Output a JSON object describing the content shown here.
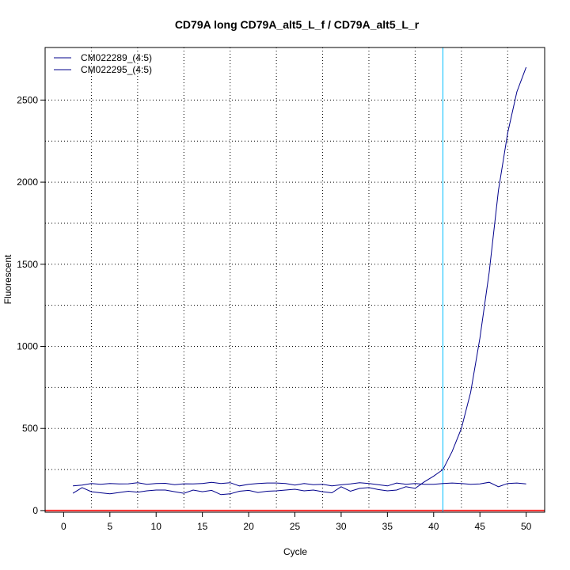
{
  "chart_data": {
    "type": "line",
    "title": "CD79A long CD79A_alt5_L_f / CD79A_alt5_L_r",
    "xlabel": "Cycle",
    "ylabel": "Fluorescent",
    "xlim": [
      -2,
      52
    ],
    "ylim": [
      -10,
      2820
    ],
    "x_ticks": [
      0,
      5,
      10,
      15,
      20,
      25,
      30,
      35,
      40,
      45,
      50
    ],
    "y_ticks": [
      0,
      500,
      1000,
      1500,
      2000,
      2500
    ],
    "x_grid": [
      3,
      8,
      13,
      18,
      23,
      28,
      33,
      38,
      43,
      48
    ],
    "y_grid": [
      250,
      500,
      750,
      1000,
      1250,
      1500,
      1750,
      2000,
      2250,
      2500
    ],
    "grid": "dotted",
    "legend_position": "top-left",
    "threshold_x": 41,
    "threshold_color": "#00bfff",
    "baseline_color": "#ff3030",
    "series": [
      {
        "name": "CM022289_(4:5)",
        "color": "#00008b",
        "x": [
          1,
          2,
          3,
          4,
          5,
          6,
          7,
          8,
          9,
          10,
          11,
          12,
          13,
          14,
          15,
          16,
          17,
          18,
          19,
          20,
          21,
          22,
          23,
          24,
          25,
          26,
          27,
          28,
          29,
          30,
          31,
          32,
          33,
          34,
          35,
          36,
          37,
          38,
          39,
          40,
          41,
          42,
          43,
          44,
          45,
          46,
          47,
          48,
          49,
          50
        ],
        "y": [
          150,
          155,
          165,
          160,
          165,
          162,
          163,
          170,
          160,
          165,
          166,
          158,
          163,
          162,
          165,
          172,
          165,
          170,
          150,
          160,
          165,
          168,
          168,
          165,
          155,
          165,
          158,
          160,
          150,
          157,
          162,
          170,
          165,
          158,
          150,
          168,
          160,
          165,
          160,
          160,
          165,
          168,
          165,
          160,
          162,
          172,
          145,
          165,
          168,
          162
        ]
      },
      {
        "name": "CM022295_(4:5)",
        "color": "#00008b",
        "x": [
          1,
          2,
          3,
          4,
          5,
          6,
          7,
          8,
          9,
          10,
          11,
          12,
          13,
          14,
          15,
          16,
          17,
          18,
          19,
          20,
          21,
          22,
          23,
          24,
          25,
          26,
          27,
          28,
          29,
          30,
          31,
          32,
          33,
          34,
          35,
          36,
          37,
          38,
          39,
          40,
          41,
          42,
          43,
          44,
          45,
          46,
          47,
          48,
          49,
          50
        ],
        "y": [
          105,
          140,
          115,
          108,
          102,
          110,
          118,
          112,
          120,
          125,
          125,
          115,
          105,
          125,
          115,
          123,
          97,
          102,
          118,
          123,
          110,
          118,
          120,
          125,
          130,
          120,
          125,
          115,
          108,
          145,
          118,
          135,
          140,
          128,
          120,
          125,
          145,
          135,
          175,
          210,
          250,
          360,
          500,
          720,
          1050,
          1450,
          1950,
          2300,
          2550,
          2700
        ]
      }
    ]
  }
}
